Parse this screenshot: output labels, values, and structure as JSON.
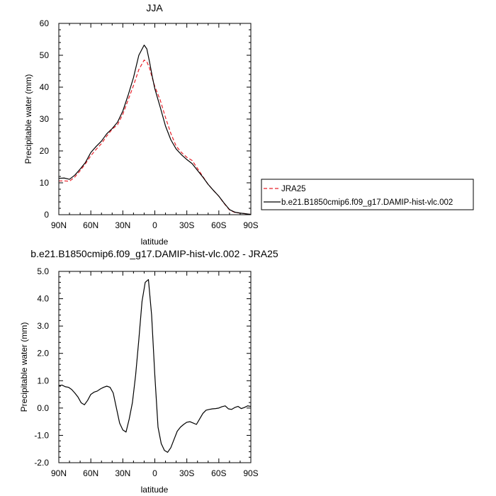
{
  "chart_data": [
    {
      "type": "line",
      "title": "JJA",
      "xlabel": "latitude",
      "ylabel": "Precipitable water (mm)",
      "xlim": [
        90,
        -90
      ],
      "ylim": [
        0,
        60
      ],
      "x_tick_values": [
        90,
        60,
        30,
        0,
        -30,
        -60,
        -90
      ],
      "x_tick_labels": [
        "90N",
        "60N",
        "30N",
        "0",
        "30S",
        "60S",
        "90S"
      ],
      "y_tick_values": [
        0,
        10,
        20,
        30,
        40,
        50,
        60
      ],
      "y_tick_labels": [
        "0",
        "10",
        "20",
        "30",
        "40",
        "50",
        "60"
      ],
      "legend": "outside-right",
      "x": [
        90,
        85,
        80,
        75,
        70,
        65,
        60,
        55,
        50,
        45,
        40,
        35,
        30,
        25,
        20,
        15,
        10,
        7.5,
        5,
        2.5,
        0,
        -5,
        -10,
        -15,
        -20,
        -25,
        -30,
        -35,
        -40,
        -45,
        -50,
        -55,
        -60,
        -65,
        -70,
        -75,
        -80,
        -85,
        -90
      ],
      "series": [
        {
          "name": "JRA25",
          "color": "#e8212a",
          "dash": "dashed",
          "values": [
            10.6,
            10.6,
            10.5,
            11.8,
            13.8,
            16.0,
            18.5,
            20.5,
            22.3,
            24.7,
            26.8,
            28.2,
            31.5,
            36.0,
            40.5,
            45.5,
            48.5,
            48.0,
            46.0,
            43.0,
            40.2,
            36.0,
            30.5,
            25.5,
            21.5,
            19.5,
            18.0,
            17.0,
            14.5,
            12.0,
            9.5,
            7.6,
            5.8,
            3.5,
            1.5,
            0.7,
            0.5,
            0.3,
            0.1
          ]
        },
        {
          "name": "b.e21.B1850cmip6.f09_g17.DAMIP-hist-vlc.002",
          "color": "#000000",
          "dash": "solid",
          "values": [
            11.4,
            11.5,
            11.1,
            12.4,
            14.3,
            16.4,
            19.5,
            21.4,
            23.1,
            25.4,
            27.0,
            29.0,
            32.5,
            37.5,
            43.0,
            50.0,
            53.2,
            52.0,
            48.0,
            43.5,
            39.5,
            33.8,
            27.8,
            23.5,
            20.6,
            18.8,
            17.3,
            16.0,
            13.9,
            11.8,
            9.5,
            7.6,
            5.8,
            3.6,
            1.6,
            0.8,
            0.5,
            0.3,
            0.1
          ]
        }
      ]
    },
    {
      "type": "line",
      "title": "b.e21.B1850cmip6.f09_g17.DAMIP-hist-vlc.002 - JRA25",
      "xlabel": "latitude",
      "ylabel": "Precipitable water (mm)",
      "xlim": [
        90,
        -90
      ],
      "ylim": [
        -2,
        5
      ],
      "x_tick_values": [
        90,
        60,
        30,
        0,
        -30,
        -60,
        -90
      ],
      "x_tick_labels": [
        "90N",
        "60N",
        "30N",
        "0",
        "30S",
        "60S",
        "90S"
      ],
      "y_tick_values": [
        5,
        4,
        3,
        2,
        1,
        0,
        -1,
        -2
      ],
      "y_tick_labels": [
        "5.0",
        "4.0",
        "3.0",
        "2.0",
        "1.0",
        "0.0",
        "-1.0",
        "-2.0"
      ],
      "x": [
        90,
        87,
        84,
        81,
        78,
        75,
        72,
        69,
        66,
        63,
        60,
        57,
        54,
        51,
        48,
        45,
        42,
        39,
        36,
        33,
        30,
        27,
        24,
        21,
        18,
        15,
        12,
        9,
        6,
        3,
        0,
        -3,
        -6,
        -9,
        -12,
        -15,
        -18,
        -21,
        -24,
        -27,
        -30,
        -33,
        -36,
        -39,
        -42,
        -45,
        -48,
        -51,
        -54,
        -57,
        -60,
        -63,
        -66,
        -69,
        -72,
        -75,
        -78,
        -81,
        -84,
        -87,
        -90
      ],
      "series": [
        {
          "name": "",
          "color": "#000000",
          "values": [
            0.82,
            0.84,
            0.78,
            0.76,
            0.68,
            0.55,
            0.4,
            0.19,
            0.12,
            0.28,
            0.5,
            0.58,
            0.62,
            0.7,
            0.76,
            0.8,
            0.76,
            0.55,
            0.0,
            -0.55,
            -0.8,
            -0.88,
            -0.4,
            0.2,
            1.2,
            2.5,
            3.9,
            4.6,
            4.7,
            3.4,
            1.2,
            -0.7,
            -1.3,
            -1.55,
            -1.62,
            -1.45,
            -1.15,
            -0.85,
            -0.7,
            -0.6,
            -0.52,
            -0.5,
            -0.55,
            -0.6,
            -0.4,
            -0.2,
            -0.08,
            -0.05,
            -0.03,
            -0.02,
            0.0,
            0.05,
            0.08,
            -0.03,
            -0.05,
            0.02,
            0.06,
            -0.02,
            0.02,
            0.08,
            0.06
          ]
        }
      ]
    }
  ]
}
